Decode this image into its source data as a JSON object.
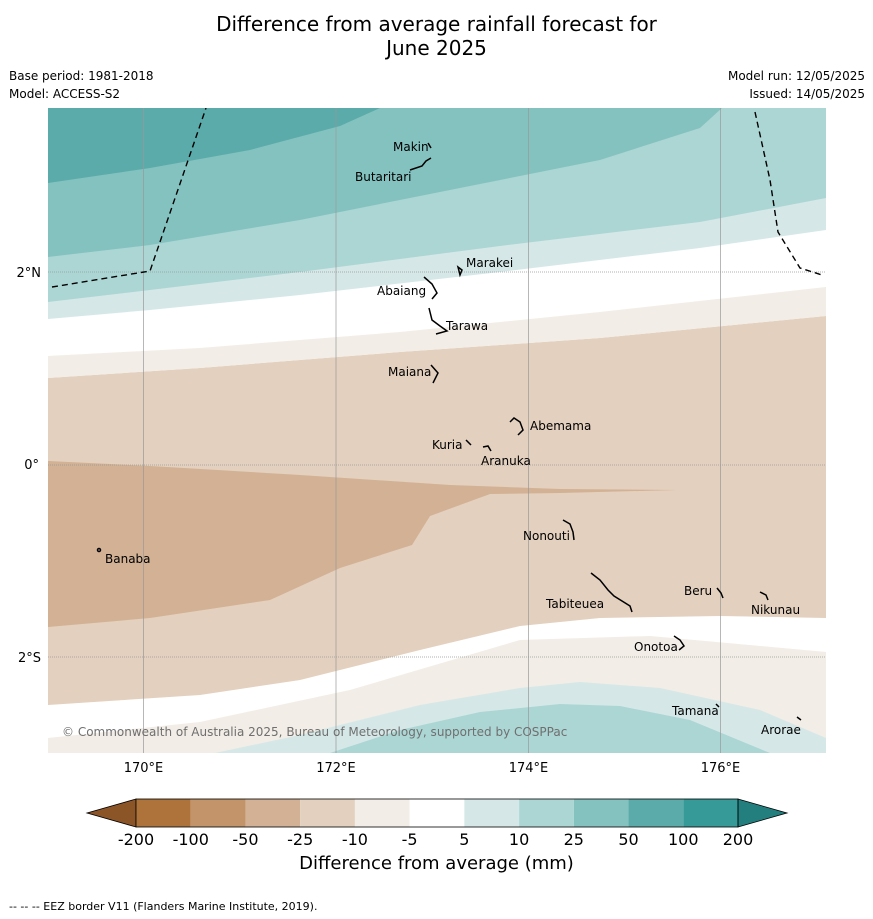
{
  "title_line1": "Difference from average rainfall forecast for",
  "title_line2": "June 2025",
  "base_period": "Base period: 1981-2018",
  "model": "Model: ACCESS-S2",
  "model_run": "Model run: 12/05/2025",
  "issued": "Issued: 14/05/2025",
  "lon_labels": [
    "170°E",
    "172°E",
    "174°E",
    "176°E"
  ],
  "lat_labels": [
    "2°N",
    "0°",
    "2°S"
  ],
  "islands": [
    "Makin",
    "Butaritari",
    "Marakei",
    "Abaiang",
    "Tarawa",
    "Maiana",
    "Abemama",
    "Kuria",
    "Aranuka",
    "Nonouti",
    "Banaba",
    "Beru",
    "Tabiteuea",
    "Nikunau",
    "Onotoa",
    "Tamana",
    "Arorae"
  ],
  "copyright": "© Commonwealth of Australia 2025, Bureau of Meteorology, supported by COSPPac",
  "legend": {
    "title": "Difference from average (mm)",
    "ticks": [
      "-200",
      "-100",
      "-50",
      "-25",
      "-10",
      "-5",
      "5",
      "10",
      "25",
      "50",
      "100",
      "200"
    ],
    "colors": [
      "#8c5527",
      "#ae733b",
      "#c39469",
      "#d3b194",
      "#e3d0be",
      "#f2ede6",
      "#ffffff",
      "#d5e8e7",
      "#acd6d4",
      "#84c2c0",
      "#5aabaa",
      "#369a98",
      "#237e7e"
    ]
  },
  "footnote": "--  --  -- EEZ border V11 (Flanders Marine Institute, 2019)."
}
